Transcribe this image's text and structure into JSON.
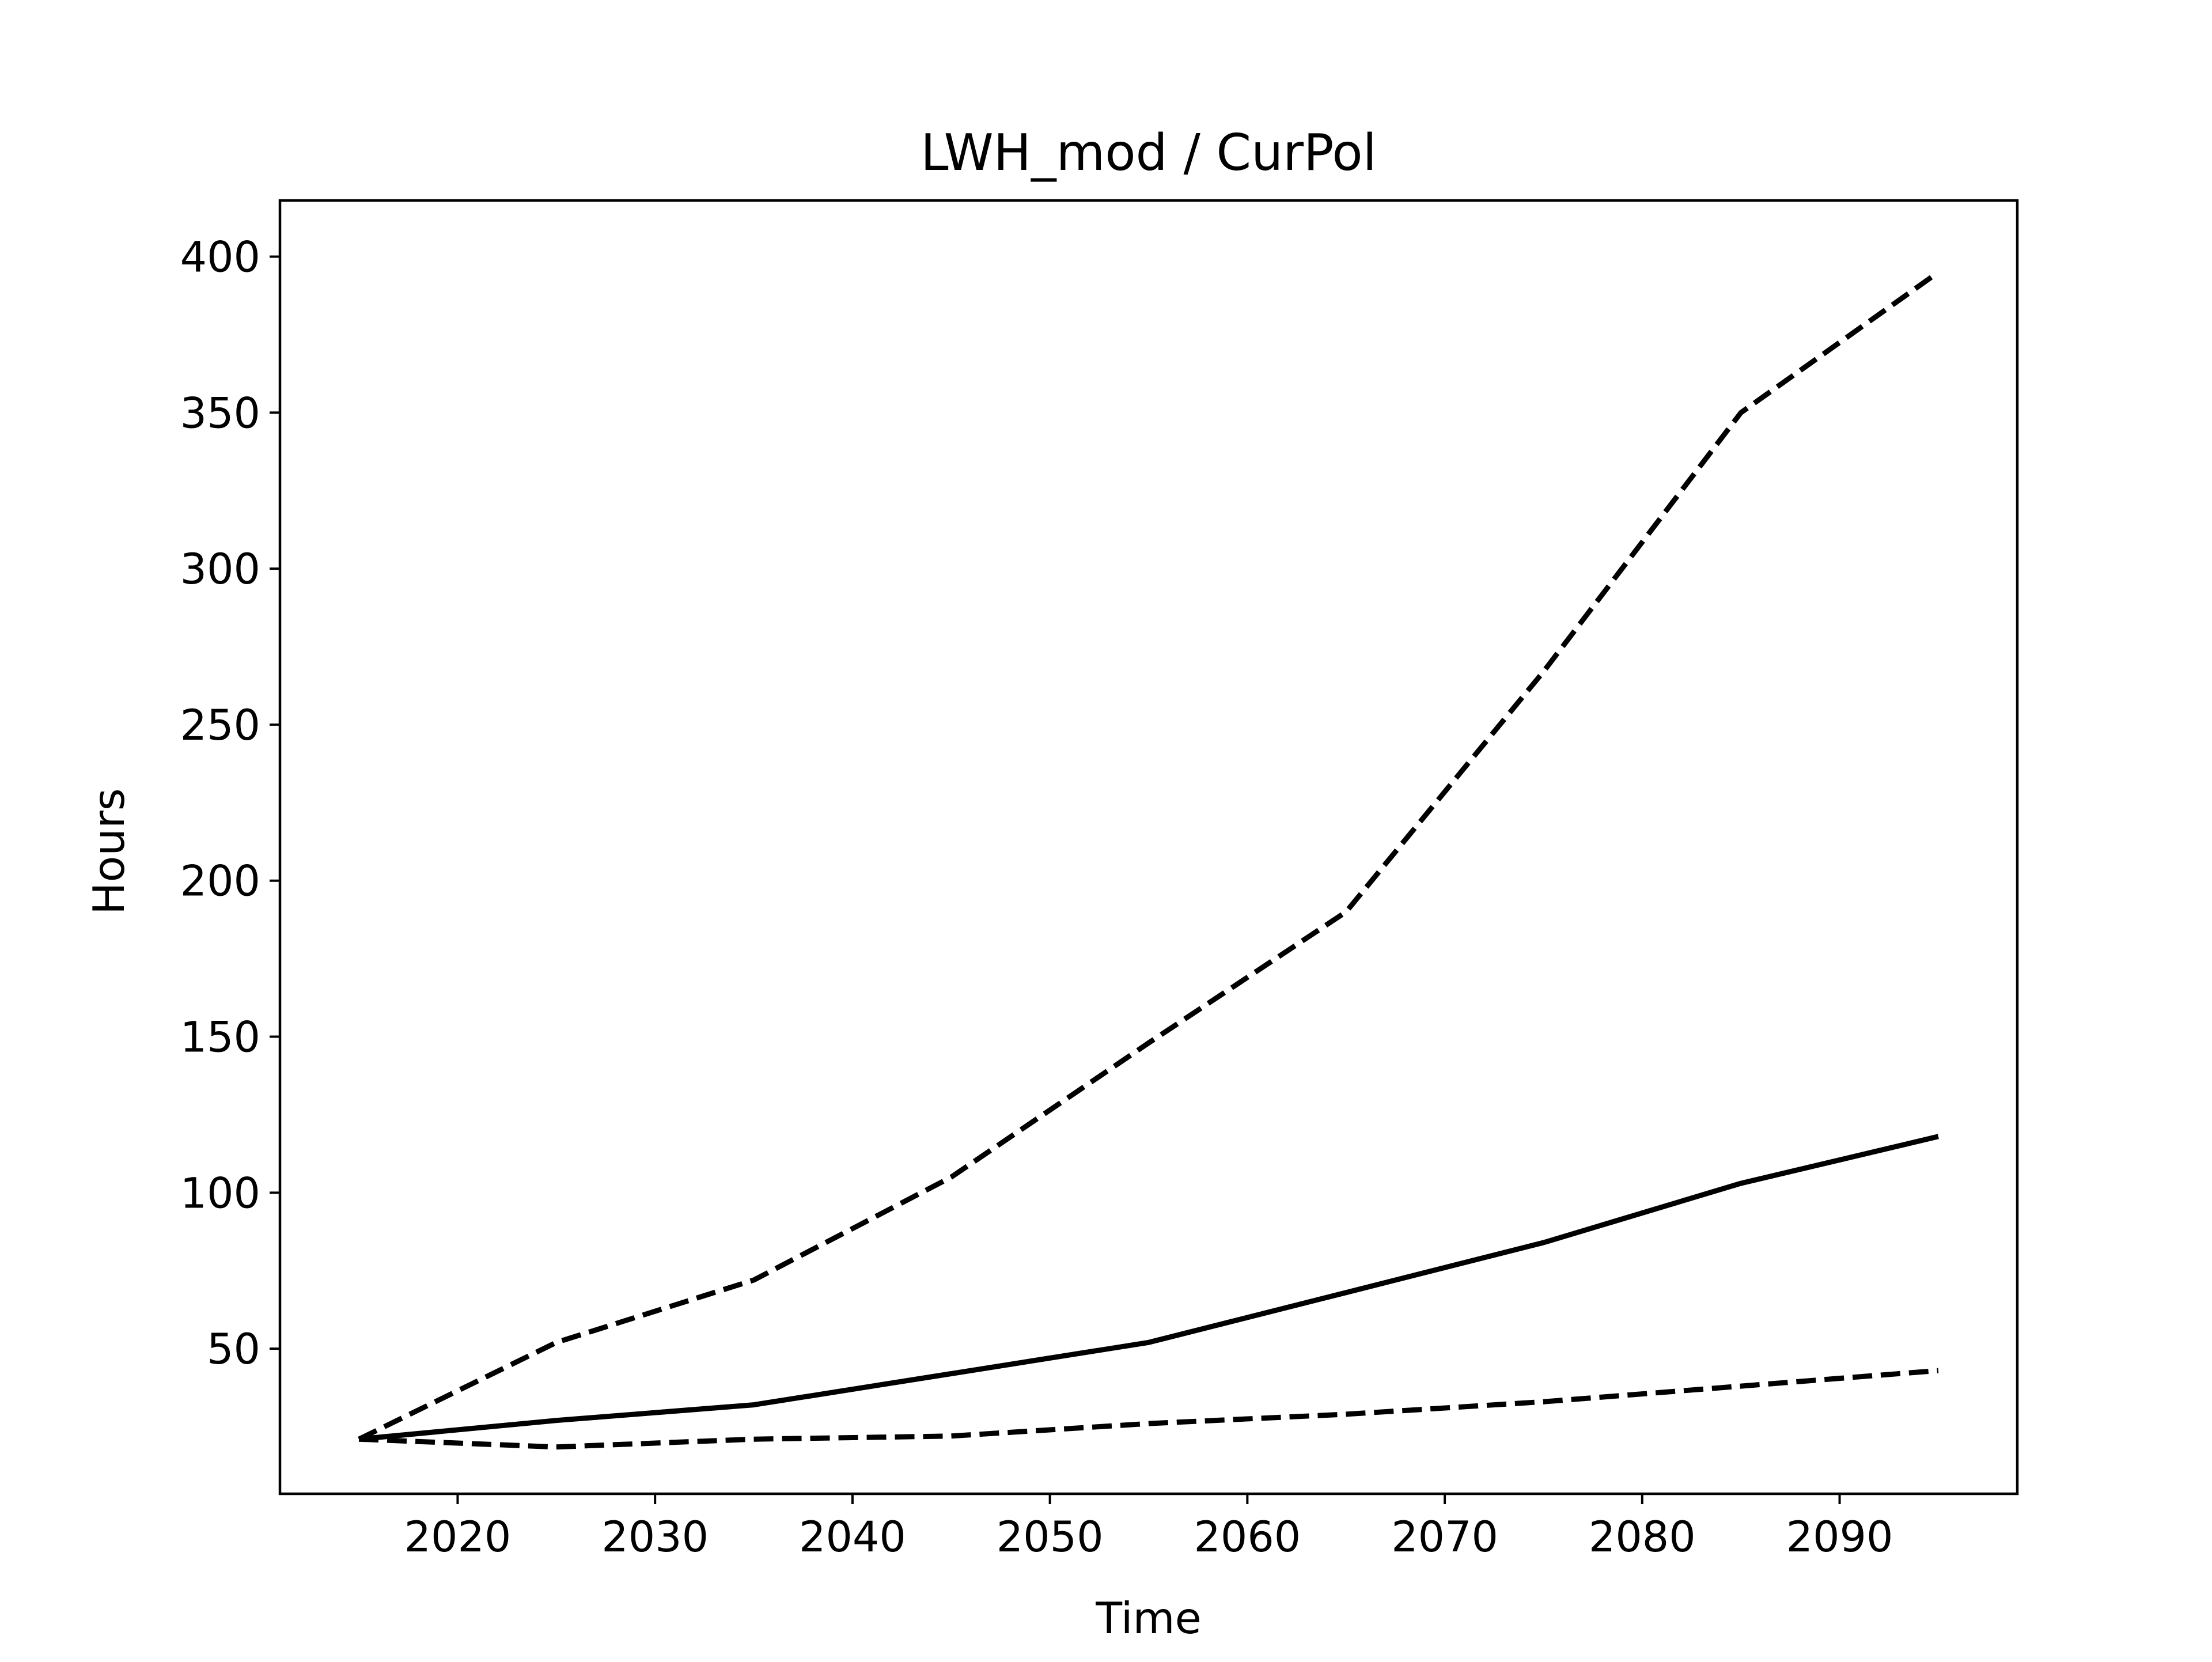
{
  "chart_data": {
    "type": "line",
    "title": "LWH_mod / CurPol",
    "xlabel": "Time",
    "ylabel": "Hours",
    "xlim": [
      2011,
      2099
    ],
    "ylim": [
      3.5,
      418
    ],
    "xticks": [
      2020,
      2030,
      2040,
      2050,
      2060,
      2070,
      2080,
      2090
    ],
    "yticks": [
      50,
      100,
      150,
      200,
      250,
      300,
      350,
      400
    ],
    "grid": false,
    "x": [
      2015,
      2025,
      2035,
      2045,
      2055,
      2065,
      2075,
      2085,
      2095
    ],
    "series": [
      {
        "style": "dashed",
        "color": "#000000",
        "values": [
          21,
          52,
          72,
          105,
          148,
          190,
          267,
          350,
          395
        ]
      },
      {
        "style": "solid",
        "color": "#000000",
        "values": [
          21,
          27,
          32,
          42,
          52,
          68,
          84,
          103,
          118
        ]
      },
      {
        "style": "dashed",
        "color": "#000000",
        "values": [
          21,
          18.5,
          21,
          22,
          26,
          29,
          33,
          38,
          43
        ]
      }
    ]
  }
}
